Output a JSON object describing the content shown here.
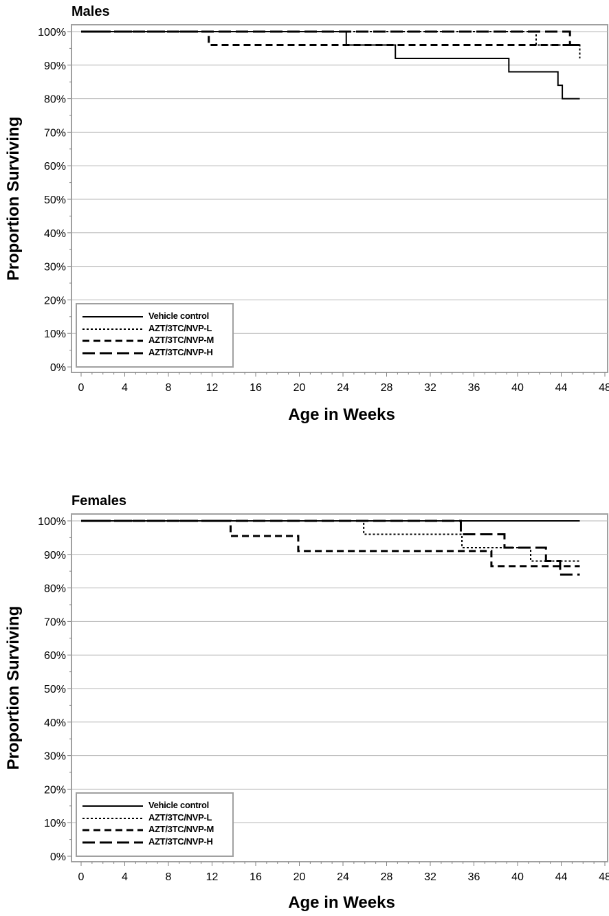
{
  "chart_data": [
    {
      "type": "line",
      "title": "Males",
      "xlabel": "Age in Weeks",
      "ylabel": "Proportion Surviving",
      "xlim": [
        0,
        48
      ],
      "ylim": [
        0,
        100
      ],
      "xticks": [
        "0",
        "4",
        "8",
        "12",
        "16",
        "20",
        "24",
        "28",
        "32",
        "36",
        "40",
        "44",
        "48"
      ],
      "yticks": [
        "0%",
        "10%",
        "20%",
        "30%",
        "40%",
        "50%",
        "60%",
        "70%",
        "80%",
        "90%",
        "100%"
      ],
      "grid": "horizontal",
      "legend": "bottom-left",
      "series": [
        {
          "name": "Vehicle control",
          "style": "solid",
          "steps": [
            [
              0,
              100
            ],
            [
              24.3,
              96
            ],
            [
              28.8,
              92
            ],
            [
              39.2,
              88
            ],
            [
              43.7,
              84
            ],
            [
              44.1,
              80
            ],
            [
              45.7,
              80
            ]
          ]
        },
        {
          "name": "AZT/3TC/NVP-L",
          "style": "dotted",
          "steps": [
            [
              0,
              100
            ],
            [
              41.7,
              96
            ],
            [
              44.8,
              96
            ],
            [
              45.7,
              92
            ]
          ]
        },
        {
          "name": "AZT/3TC/NVP-M",
          "style": "dashed",
          "steps": [
            [
              0,
              100
            ],
            [
              11.7,
              96
            ],
            [
              43.3,
              96
            ],
            [
              44.8,
              96
            ],
            [
              45.7,
              96
            ]
          ]
        },
        {
          "name": "AZT/3TC/NVP-H",
          "style": "longdash",
          "steps": [
            [
              0,
              100
            ],
            [
              44.8,
              96
            ],
            [
              45.7,
              96
            ]
          ]
        }
      ]
    },
    {
      "type": "line",
      "title": "Females",
      "xlabel": "Age in Weeks",
      "ylabel": "Proportion Surviving",
      "xlim": [
        0,
        48
      ],
      "ylim": [
        0,
        100
      ],
      "xticks": [
        "0",
        "4",
        "8",
        "12",
        "16",
        "20",
        "24",
        "28",
        "32",
        "36",
        "40",
        "44",
        "48"
      ],
      "yticks": [
        "0%",
        "10%",
        "20%",
        "30%",
        "40%",
        "50%",
        "60%",
        "70%",
        "80%",
        "90%",
        "100%"
      ],
      "grid": "horizontal",
      "legend": "bottom-left",
      "series": [
        {
          "name": "Vehicle control",
          "style": "solid",
          "steps": [
            [
              0,
              100
            ],
            [
              45.7,
              100
            ]
          ]
        },
        {
          "name": "AZT/3TC/NVP-L",
          "style": "dotted",
          "steps": [
            [
              0,
              100
            ],
            [
              25.9,
              96
            ],
            [
              34.9,
              92
            ],
            [
              41.2,
              88
            ],
            [
              45.7,
              88
            ]
          ]
        },
        {
          "name": "AZT/3TC/NVP-M",
          "style": "dashed",
          "steps": [
            [
              0,
              100
            ],
            [
              13.7,
              95.5
            ],
            [
              19.9,
              91
            ],
            [
              37.6,
              86.5
            ],
            [
              45.7,
              86.5
            ]
          ]
        },
        {
          "name": "AZT/3TC/NVP-H",
          "style": "longdash",
          "steps": [
            [
              0,
              100
            ],
            [
              34.8,
              96
            ],
            [
              38.8,
              92
            ],
            [
              42.6,
              88
            ],
            [
              43.9,
              84
            ],
            [
              45.7,
              84
            ]
          ]
        }
      ]
    }
  ]
}
